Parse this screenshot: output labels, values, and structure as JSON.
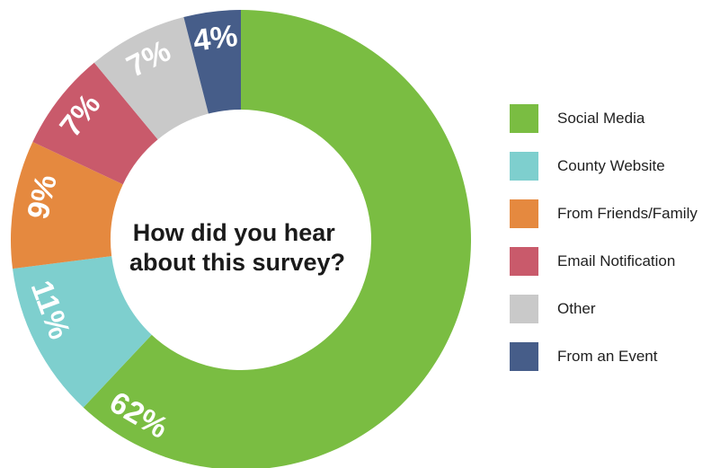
{
  "chart_data": {
    "type": "pie",
    "donut": true,
    "title": "How did you hear about this survey?",
    "title_lines": [
      "How did you hear",
      "about this survey?"
    ],
    "legend_position": "right",
    "categories": [
      "Social Media",
      "County Website",
      "From Friends/Family",
      "Email Notification",
      "Other",
      "From an Event"
    ],
    "values": [
      62,
      11,
      9,
      7,
      7,
      4
    ],
    "value_labels": [
      "62%",
      "11%",
      "9%",
      "7%",
      "7%",
      "4%"
    ],
    "colors": [
      "#7abd42",
      "#7ecfce",
      "#e5893f",
      "#c95a6b",
      "#c9c9c9",
      "#465d89"
    ]
  }
}
